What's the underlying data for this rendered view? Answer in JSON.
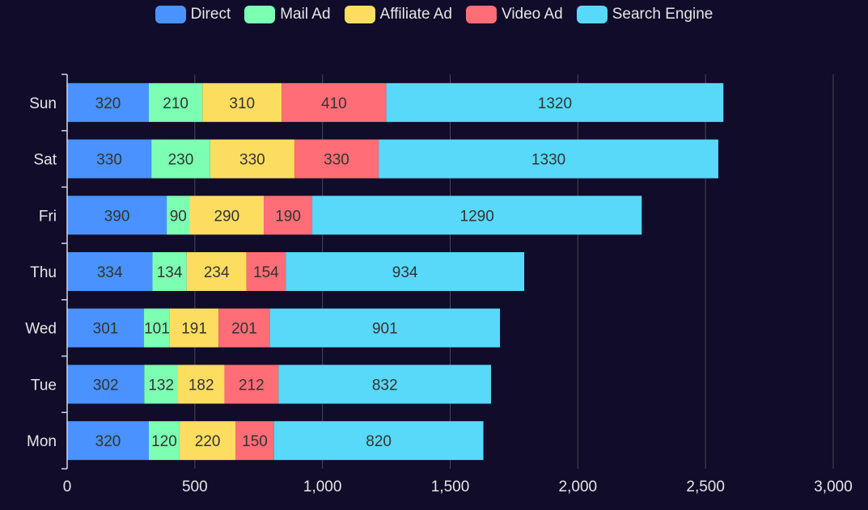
{
  "colors": {
    "background": "#100c2a",
    "grid": "#484753",
    "axis": "#d8d8d8",
    "text": "#e6e6e6",
    "label_text": "#333333"
  },
  "legend": [
    {
      "name": "Direct",
      "color": "#4992ff"
    },
    {
      "name": "Mail Ad",
      "color": "#7cffb2"
    },
    {
      "name": "Affiliate Ad",
      "color": "#fddd60"
    },
    {
      "name": "Video Ad",
      "color": "#ff6e76"
    },
    {
      "name": "Search Engine",
      "color": "#58d9f9"
    }
  ],
  "chart_data": {
    "type": "bar",
    "orientation": "horizontal",
    "stacked": true,
    "categories": [
      "Mon",
      "Tue",
      "Wed",
      "Thu",
      "Fri",
      "Sat",
      "Sun"
    ],
    "series": [
      {
        "name": "Direct",
        "values": [
          320,
          302,
          301,
          334,
          390,
          330,
          320
        ]
      },
      {
        "name": "Mail Ad",
        "values": [
          120,
          132,
          101,
          134,
          90,
          230,
          210
        ]
      },
      {
        "name": "Affiliate Ad",
        "values": [
          220,
          182,
          191,
          234,
          290,
          330,
          310
        ]
      },
      {
        "name": "Video Ad",
        "values": [
          150,
          212,
          201,
          154,
          190,
          330,
          410
        ]
      },
      {
        "name": "Search Engine",
        "values": [
          820,
          832,
          901,
          934,
          1290,
          1330,
          1320
        ]
      }
    ],
    "xlim": [
      0,
      3000
    ],
    "xticks": [
      0,
      500,
      1000,
      1500,
      2000,
      2500,
      3000
    ],
    "xtick_labels": [
      "0",
      "500",
      "1,000",
      "1,500",
      "2,000",
      "2,500",
      "3,000"
    ],
    "grid": true,
    "data_labels": true,
    "legend_position": "top-center",
    "title": "",
    "xlabel": "",
    "ylabel": ""
  }
}
